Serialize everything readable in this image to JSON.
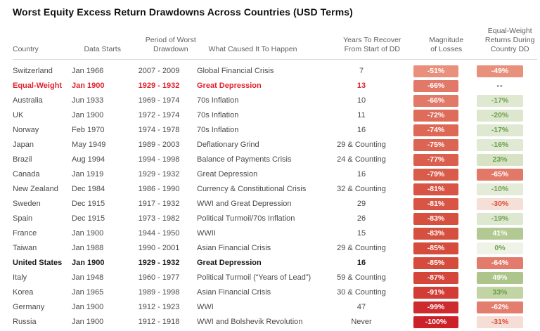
{
  "title": "Worst Equity Excess Return Drawdowns Across Countries (USD Terms)",
  "colors": {
    "highlight_red_text": "#e0232e",
    "bold_row_text": "#1a1a1a",
    "header_text": "#5f5f5f",
    "body_text": "#4a4a4a",
    "header_rule": "#d9d9d9"
  },
  "chart_data": {
    "type": "table",
    "title": "Worst Equity Excess Return Drawdowns Across Countries (USD Terms)",
    "columns": [
      {
        "key": "country",
        "label": "Country"
      },
      {
        "key": "data_starts",
        "label": "Data Starts"
      },
      {
        "key": "period",
        "label": "Period of Worst\nDrawdown"
      },
      {
        "key": "cause",
        "label": "What Caused It To Happen"
      },
      {
        "key": "years",
        "label": "Years To Recover\nFrom Start of DD"
      },
      {
        "key": "magnitude",
        "label": "Magnitude\nof Losses"
      },
      {
        "key": "ew",
        "label": "Equal-Weight\nReturns During\nCountry DD"
      }
    ],
    "rows": [
      {
        "country": "Switzerland",
        "data_starts": "Jan 1966",
        "period": "2007 - 2009",
        "cause": "Global Financial Crisis",
        "years": "7",
        "magnitude": "-51%",
        "magnitude_bg": "#E8907C",
        "magnitude_color": "#FFFFFF",
        "ew": "-49%",
        "ew_bg": "#E8907C",
        "ew_color": "#FFFFFF",
        "style": "normal"
      },
      {
        "country": "Equal-Weight",
        "data_starts": "Jan 1900",
        "period": "1929 - 1932",
        "cause": "Great Depression",
        "years": "13",
        "magnitude": "-66%",
        "magnitude_bg": "#E17868",
        "magnitude_color": "#FFFFFF",
        "ew": "--",
        "ew_bg": null,
        "ew_color": "#3b3b3b",
        "style": "red"
      },
      {
        "country": "Australia",
        "data_starts": "Jun 1933",
        "period": "1969 - 1974",
        "cause": "70s Inflation",
        "years": "10",
        "magnitude": "-66%",
        "magnitude_bg": "#E17868",
        "magnitude_color": "#FFFFFF",
        "ew": "-17%",
        "ew_bg": "#DFE8D1",
        "ew_color": "#6CA04C",
        "style": "normal"
      },
      {
        "country": "UK",
        "data_starts": "Jan 1900",
        "period": "1972 - 1974",
        "cause": "70s Inflation",
        "years": "11",
        "magnitude": "-72%",
        "magnitude_bg": "#DE6C5B",
        "magnitude_color": "#FFFFFF",
        "ew": "-20%",
        "ew_bg": "#DDE7CE",
        "ew_color": "#6CA04C",
        "style": "normal"
      },
      {
        "country": "Norway",
        "data_starts": "Feb 1970",
        "period": "1974 - 1978",
        "cause": "70s Inflation",
        "years": "16",
        "magnitude": "-74%",
        "magnitude_bg": "#DD6856",
        "magnitude_color": "#FFFFFF",
        "ew": "-17%",
        "ew_bg": "#DFE8D1",
        "ew_color": "#6CA04C",
        "style": "normal"
      },
      {
        "country": "Japan",
        "data_starts": "May 1949",
        "period": "1989 - 2003",
        "cause": "Deflationary Grind",
        "years": "29 & Counting",
        "magnitude": "-75%",
        "magnitude_bg": "#DC6452",
        "magnitude_color": "#FFFFFF",
        "ew": "-16%",
        "ew_bg": "#E0E9D3",
        "ew_color": "#6CA04C",
        "style": "normal"
      },
      {
        "country": "Brazil",
        "data_starts": "Aug 1994",
        "period": "1994 - 1998",
        "cause": "Balance of Payments Crisis",
        "years": "24 & Counting",
        "magnitude": "-77%",
        "magnitude_bg": "#DA5F4E",
        "magnitude_color": "#FFFFFF",
        "ew": "23%",
        "ew_bg": "#D7E3C4",
        "ew_color": "#68A047",
        "style": "normal"
      },
      {
        "country": "Canada",
        "data_starts": "Jan 1919",
        "period": "1929 - 1932",
        "cause": "Great Depression",
        "years": "16",
        "magnitude": "-79%",
        "magnitude_bg": "#D95B4A",
        "magnitude_color": "#FFFFFF",
        "ew": "-65%",
        "ew_bg": "#E17868",
        "ew_color": "#FFFFFF",
        "style": "normal"
      },
      {
        "country": "New Zealand",
        "data_starts": "Dec 1984",
        "period": "1986 - 1990",
        "cause": "Currency & Constitutional Crisis",
        "years": "32 & Counting",
        "magnitude": "-81%",
        "magnitude_bg": "#D85545",
        "magnitude_color": "#FFFFFF",
        "ew": "-10%",
        "ew_bg": "#E4EBD9",
        "ew_color": "#6CA04C",
        "style": "normal"
      },
      {
        "country": "Sweden",
        "data_starts": "Dec 1915",
        "period": "1917 - 1932",
        "cause": "WWI and Great Depression",
        "years": "29",
        "magnitude": "-81%",
        "magnitude_bg": "#D85545",
        "magnitude_color": "#FFFFFF",
        "ew": "-30%",
        "ew_bg": "#F6DFD6",
        "ew_color": "#D8503E",
        "style": "normal"
      },
      {
        "country": "Spain",
        "data_starts": "Dec 1915",
        "period": "1973 - 1982",
        "cause": "Political Turmoil/70s Inflation",
        "years": "26",
        "magnitude": "-83%",
        "magnitude_bg": "#D65040",
        "magnitude_color": "#FFFFFF",
        "ew": "-19%",
        "ew_bg": "#DEE7D0",
        "ew_color": "#6CA04C",
        "style": "normal"
      },
      {
        "country": "France",
        "data_starts": "Jan 1900",
        "period": "1944 - 1950",
        "cause": "WWII",
        "years": "15",
        "magnitude": "-83%",
        "magnitude_bg": "#D65040",
        "magnitude_color": "#FFFFFF",
        "ew": "41%",
        "ew_bg": "#B3C993",
        "ew_color": "#FFFFFF",
        "style": "normal"
      },
      {
        "country": "Taiwan",
        "data_starts": "Jan 1988",
        "period": "1990 - 2001",
        "cause": "Asian Financial Crisis",
        "years": "29 & Counting",
        "magnitude": "-85%",
        "magnitude_bg": "#D54B3C",
        "magnitude_color": "#FFFFFF",
        "ew": "0%",
        "ew_bg": "#EFF3E7",
        "ew_color": "#6CA04C",
        "style": "normal"
      },
      {
        "country": "United States",
        "data_starts": "Jan 1900",
        "period": "1929 - 1932",
        "cause": "Great Depression",
        "years": "16",
        "magnitude": "-85%",
        "magnitude_bg": "#D54B3C",
        "magnitude_color": "#FFFFFF",
        "ew": "-64%",
        "ew_bg": "#E27B6B",
        "ew_color": "#FFFFFF",
        "style": "bold"
      },
      {
        "country": "Italy",
        "data_starts": "Jan 1948",
        "period": "1960 - 1977",
        "cause": "Political Turmoil (“Years of Lead”)",
        "years": "59 & Counting",
        "magnitude": "-87%",
        "magnitude_bg": "#D4463A",
        "magnitude_color": "#FFFFFF",
        "ew": "49%",
        "ew_bg": "#ADC48A",
        "ew_color": "#FFFFFF",
        "style": "normal"
      },
      {
        "country": "Korea",
        "data_starts": "Jan 1965",
        "period": "1989 - 1998",
        "cause": "Asian Financial Crisis",
        "years": "30 & Counting",
        "magnitude": "-91%",
        "magnitude_bg": "#D23C35",
        "magnitude_color": "#FFFFFF",
        "ew": "33%",
        "ew_bg": "#C2D3A4",
        "ew_color": "#68A047",
        "style": "normal"
      },
      {
        "country": "Germany",
        "data_starts": "Jan 1900",
        "period": "1912 - 1923",
        "cause": "WWI",
        "years": "47",
        "magnitude": "-99%",
        "magnitude_bg": "#CE2B2E",
        "magnitude_color": "#FFFFFF",
        "ew": "-62%",
        "ew_bg": "#E37E6E",
        "ew_color": "#FFFFFF",
        "style": "normal"
      },
      {
        "country": "Russia",
        "data_starts": "Jan 1900",
        "period": "1912 - 1918",
        "cause": "WWI and Bolshevik Revolution",
        "years": "Never",
        "magnitude": "-100%",
        "magnitude_bg": "#CB222A",
        "magnitude_color": "#FFFFFF",
        "ew": "-31%",
        "ew_bg": "#F6DED6",
        "ew_color": "#D8503E",
        "style": "normal"
      }
    ]
  }
}
